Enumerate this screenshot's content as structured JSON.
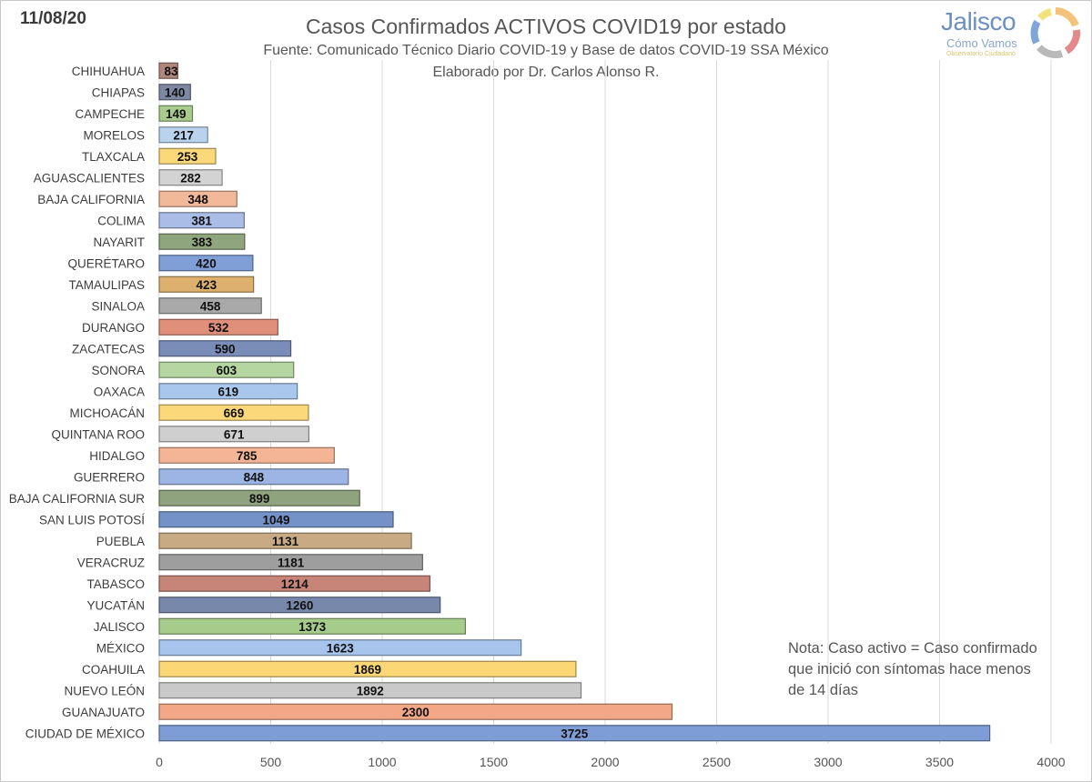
{
  "header": {
    "date": "11/08/20",
    "title": "Casos Confirmados ACTIVOS COVID19 por estado",
    "subtitle": "Fuente: Comunicado Técnico Diario COVID-19 y Base de datos COVID-19 SSA México",
    "author": "Elaborado por Dr. Carlos Alonso R."
  },
  "logo": {
    "name": "Jalisco",
    "tagline": "Cómo Vamos",
    "sub": "Observatorio Ciudadano"
  },
  "note": {
    "line1": "Nota: Caso activo = Caso confirmado",
    "line2": "que inició con síntomas hace menos",
    "line3": "de 14 días"
  },
  "chart_data": {
    "type": "bar",
    "orientation": "horizontal",
    "title": "Casos Confirmados ACTIVOS COVID19 por estado",
    "xlabel": "",
    "ylabel": "",
    "xlim": [
      0,
      4000
    ],
    "x_ticks": [
      0,
      500,
      1000,
      1500,
      2000,
      2500,
      3000,
      3500,
      4000
    ],
    "grid": true,
    "categories": [
      "CHIHUAHUA",
      "CHIAPAS",
      "CAMPECHE",
      "MORELOS",
      "TLAXCALA",
      "AGUASCALIENTES",
      "BAJA CALIFORNIA",
      "COLIMA",
      "NAYARIT",
      "QUERÉTARO",
      "TAMAULIPAS",
      "SINALOA",
      "DURANGO",
      "ZACATECAS",
      "SONORA",
      "OAXACA",
      "MICHOACÁN",
      "QUINTANA ROO",
      "HIDALGO",
      "GUERRERO",
      "BAJA CALIFORNIA SUR",
      "SAN LUIS POTOSÍ",
      "PUEBLA",
      "VERACRUZ",
      "TABASCO",
      "YUCATÁN",
      "JALISCO",
      "MÉXICO",
      "COAHUILA",
      "NUEVO LEÓN",
      "GUANAJUATO",
      "CIUDAD DE MÉXICO"
    ],
    "values": [
      83,
      140,
      149,
      217,
      253,
      282,
      348,
      381,
      383,
      420,
      423,
      458,
      532,
      590,
      603,
      619,
      669,
      671,
      785,
      848,
      899,
      1049,
      1131,
      1181,
      1214,
      1260,
      1373,
      1623,
      1869,
      1892,
      2300,
      3725
    ],
    "colors": [
      "#b0877c",
      "#7e88a3",
      "#a9cc8e",
      "#b9d3ef",
      "#fbd87a",
      "#d3d3d3",
      "#f2b89a",
      "#a9bde6",
      "#8fa57e",
      "#7f9fd6",
      "#ddb06e",
      "#a9a9a9",
      "#e0907a",
      "#7a8cb8",
      "#b5d6a0",
      "#a9c7ec",
      "#fbd97a",
      "#cfcfcf",
      "#f3b596",
      "#9cb5e4",
      "#8ea37e",
      "#7491c8",
      "#c8ab85",
      "#9e9e9e",
      "#c7857a",
      "#7888aa",
      "#a5cc8a",
      "#a6c4ec",
      "#fbd775",
      "#c9c9c9",
      "#f2a886",
      "#7e9dd6"
    ]
  }
}
